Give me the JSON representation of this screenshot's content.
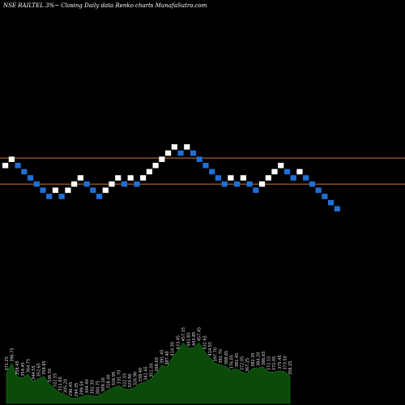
{
  "header": {
    "title": "NSE RAILTEL 3%~ Closing Daily data Renko charts MunafaSutra.com"
  },
  "chart_data": {
    "type": "renko",
    "title": "NSE RAILTEL 3%~ Closing Daily data Renko charts MunafaSutra.com",
    "x_axis": "none",
    "y_axis": "none",
    "colors": {
      "up_brick": "#ffffff",
      "down_brick": "#1f6fd6",
      "reference_line": "#c87830",
      "volume_area": "#0b4a0b",
      "background": "#000000"
    },
    "bricks": [
      {
        "level": 0,
        "dir": "up"
      },
      {
        "level": 1,
        "dir": "up"
      },
      {
        "level": 0,
        "dir": "down"
      },
      {
        "level": -1,
        "dir": "down"
      },
      {
        "level": -2,
        "dir": "down"
      },
      {
        "level": -3,
        "dir": "down"
      },
      {
        "level": -4,
        "dir": "down"
      },
      {
        "level": -5,
        "dir": "down"
      },
      {
        "level": -4,
        "dir": "up"
      },
      {
        "level": -5,
        "dir": "down"
      },
      {
        "level": -4,
        "dir": "up"
      },
      {
        "level": -3,
        "dir": "up"
      },
      {
        "level": -2,
        "dir": "up"
      },
      {
        "level": -3,
        "dir": "down"
      },
      {
        "level": -4,
        "dir": "down"
      },
      {
        "level": -5,
        "dir": "down"
      },
      {
        "level": -4,
        "dir": "up"
      },
      {
        "level": -3,
        "dir": "up"
      },
      {
        "level": -2,
        "dir": "up"
      },
      {
        "level": -3,
        "dir": "down"
      },
      {
        "level": -2,
        "dir": "up"
      },
      {
        "level": -3,
        "dir": "down"
      },
      {
        "level": -2,
        "dir": "up"
      },
      {
        "level": -1,
        "dir": "up"
      },
      {
        "level": 0,
        "dir": "up"
      },
      {
        "level": 1,
        "dir": "up"
      },
      {
        "level": 2,
        "dir": "up"
      },
      {
        "level": 3,
        "dir": "up"
      },
      {
        "level": 2,
        "dir": "down"
      },
      {
        "level": 3,
        "dir": "up"
      },
      {
        "level": 2,
        "dir": "down"
      },
      {
        "level": 1,
        "dir": "down"
      },
      {
        "level": 0,
        "dir": "down"
      },
      {
        "level": -1,
        "dir": "down"
      },
      {
        "level": -2,
        "dir": "down"
      },
      {
        "level": -3,
        "dir": "down"
      },
      {
        "level": -2,
        "dir": "up"
      },
      {
        "level": -3,
        "dir": "down"
      },
      {
        "level": -2,
        "dir": "up"
      },
      {
        "level": -3,
        "dir": "down"
      },
      {
        "level": -4,
        "dir": "down"
      },
      {
        "level": -3,
        "dir": "up"
      },
      {
        "level": -2,
        "dir": "up"
      },
      {
        "level": -1,
        "dir": "up"
      },
      {
        "level": 0,
        "dir": "up"
      },
      {
        "level": -1,
        "dir": "down"
      },
      {
        "level": -2,
        "dir": "down"
      },
      {
        "level": -1,
        "dir": "up"
      },
      {
        "level": -2,
        "dir": "down"
      },
      {
        "level": -3,
        "dir": "down"
      },
      {
        "level": -4,
        "dir": "down"
      },
      {
        "level": -5,
        "dir": "down"
      },
      {
        "level": -6,
        "dir": "down"
      },
      {
        "level": -7,
        "dir": "down"
      }
    ],
    "reference_lines": [
      {
        "level": 1.2
      },
      {
        "level": -3.0
      }
    ],
    "volume_labels": [
      "371.25",
      "396.75",
      "358.45",
      "354.45",
      "364.75",
      "344.55",
      "352.65",
      "358.85",
      "336.55",
      "322.55",
      "311.60",
      "305.20",
      "296.45",
      "294.35",
      "299.50",
      "304.40",
      "302.30",
      "300.75",
      "309.10",
      "318.40",
      "326.95",
      "331.70",
      "322.55",
      "320.90",
      "326.90",
      "338.40",
      "342.65",
      "351.50",
      "368.60",
      "391.45",
      "387.40",
      "414.30",
      "433.45",
      "457.15",
      "441.85",
      "443.85",
      "457.45",
      "432.65",
      "414.55",
      "397.70",
      "392.70",
      "388.65",
      "376.05",
      "381.45",
      "372.05",
      "367.25",
      "382.35",
      "384.20",
      "386.65",
      "372.15",
      "372.05",
      "375.45",
      "373.50",
      "358.25"
    ]
  }
}
